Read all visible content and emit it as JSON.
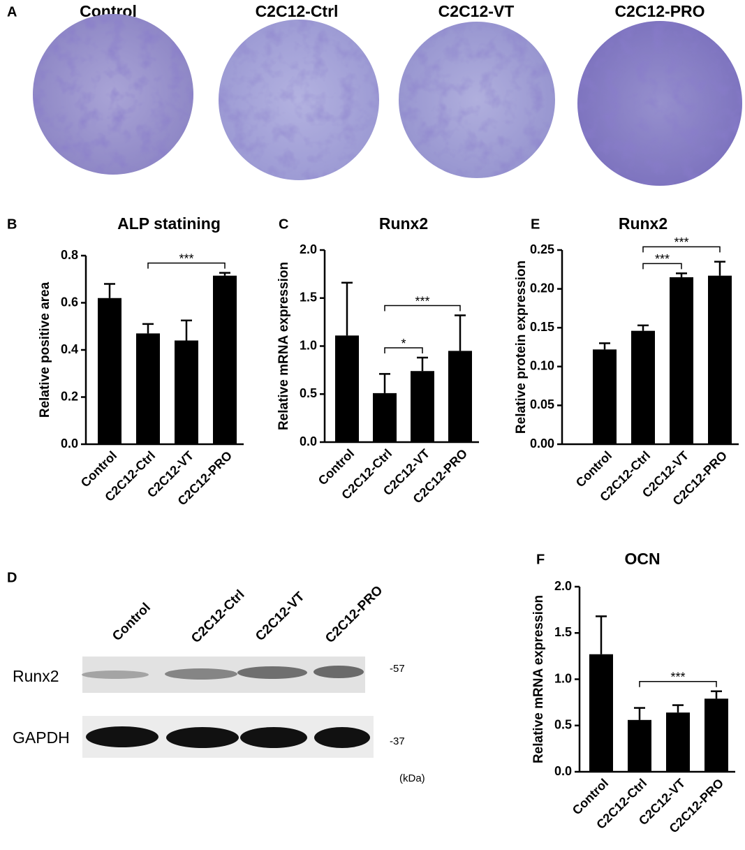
{
  "panels": {
    "A": {
      "label": "A",
      "titles": [
        "Control",
        "C2C12-Ctrl",
        "C2C12-VT",
        "C2C12-PRO"
      ]
    },
    "D": {
      "label": "D",
      "lanes": [
        "Control",
        "C2C12-Ctrl",
        "C2C12-VT",
        "C2C12-PRO"
      ],
      "rows": [
        "Runx2",
        "GAPDH"
      ],
      "markers": [
        "-57",
        "-37"
      ],
      "unit": "(kDa)"
    }
  },
  "chart_data": [
    {
      "type": "bar",
      "panel_label": "B",
      "title": "ALP statining",
      "ylabel": "Relative positive area",
      "categories": [
        "Control",
        "C2C12-Ctrl",
        "C2C12-VT",
        "C2C12-PRO"
      ],
      "values": [
        0.62,
        0.47,
        0.44,
        0.715
      ],
      "errors": [
        0.06,
        0.04,
        0.085,
        0.012
      ],
      "color": "#000000",
      "ylim": [
        0,
        0.8
      ],
      "yticks": [
        {
          "value": 0,
          "label": "0.0"
        },
        0.2,
        0.4,
        0.6,
        0.8
      ],
      "annotations": [
        {
          "text": "***",
          "from": "C2C12-Ctrl",
          "to": "C2C12-PRO"
        }
      ]
    },
    {
      "type": "bar",
      "panel_label": "C",
      "title": "Runx2",
      "ylabel": "Relative mRNA expression",
      "categories": [
        "Control",
        "C2C12-Ctrl",
        "C2C12-VT",
        "C2C12-PRO"
      ],
      "values": [
        1.11,
        0.51,
        0.74,
        0.95
      ],
      "errors": [
        0.55,
        0.2,
        0.14,
        0.37
      ],
      "color": "#000000",
      "ylim": [
        0,
        2
      ],
      "yticks": [
        {
          "value": 0,
          "label": "0.0"
        },
        0.5,
        {
          "value": 1,
          "label": "1.0"
        },
        1.5,
        {
          "value": 2,
          "label": "2.0"
        }
      ],
      "annotations": [
        {
          "text": "*",
          "from": "C2C12-Ctrl",
          "to": "C2C12-VT"
        },
        {
          "text": "***",
          "from": "C2C12-Ctrl",
          "to": "C2C12-PRO"
        }
      ]
    },
    {
      "type": "bar",
      "panel_label": "E",
      "title": "Runx2",
      "ylabel": "Relative protein expression",
      "categories": [
        "Control",
        "C2C12-Ctrl",
        "C2C12-VT",
        "C2C12-PRO"
      ],
      "values": [
        0.122,
        0.146,
        0.215,
        0.217
      ],
      "errors": [
        0.008,
        0.007,
        0.005,
        0.018
      ],
      "color": "#000000",
      "ylim": [
        0,
        0.25
      ],
      "yticks": [
        {
          "value": 0,
          "label": "0.00"
        },
        0.05,
        {
          "value": 0.1,
          "label": "0.10"
        },
        0.15,
        {
          "value": 0.2,
          "label": "0.20"
        },
        0.25
      ],
      "annotations": [
        {
          "text": "***",
          "from": "C2C12-Ctrl",
          "to": "C2C12-VT"
        },
        {
          "text": "***",
          "from": "C2C12-Ctrl",
          "to": "C2C12-PRO"
        }
      ]
    },
    {
      "type": "bar",
      "panel_label": "F",
      "title": "OCN",
      "ylabel": "Relative mRNA expression",
      "categories": [
        "Control",
        "C2C12-Ctrl",
        "C2C12-VT",
        "C2C12-PRO"
      ],
      "values": [
        1.27,
        0.56,
        0.64,
        0.79
      ],
      "errors": [
        0.41,
        0.13,
        0.08,
        0.08
      ],
      "color": "#000000",
      "ylim": [
        0,
        2
      ],
      "yticks": [
        {
          "value": 0,
          "label": "0.0"
        },
        0.5,
        {
          "value": 1,
          "label": "1.0"
        },
        1.5,
        {
          "value": 2,
          "label": "2.0"
        }
      ],
      "annotations": [
        {
          "text": "***",
          "from": "C2C12-Ctrl",
          "to": "C2C12-PRO"
        }
      ]
    }
  ]
}
